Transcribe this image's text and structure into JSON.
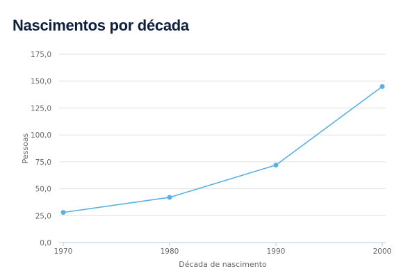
{
  "chart_data": {
    "type": "line",
    "title": "Nascimentos por década",
    "xlabel": "Década de nascimento",
    "ylabel": "Pessoas",
    "categories": [
      "1970",
      "1980",
      "1990",
      "2000"
    ],
    "series": [
      {
        "name": "Pessoas",
        "values": [
          28,
          42,
          72,
          145
        ],
        "color": "#5ab0e2"
      }
    ],
    "ylim": [
      0,
      175
    ],
    "yticks": [
      0,
      25,
      50,
      75,
      100,
      125,
      150,
      175
    ],
    "ytick_labels": [
      "0,0",
      "25,0",
      "50,0",
      "75,0",
      "100,0",
      "125,0",
      "150,0",
      "175,0"
    ],
    "grid": true,
    "colors": {
      "grid": "#e0e0e0",
      "axis": "#a8cbe8",
      "line": "#5ab0e2",
      "title": "#0d1f3c"
    }
  }
}
